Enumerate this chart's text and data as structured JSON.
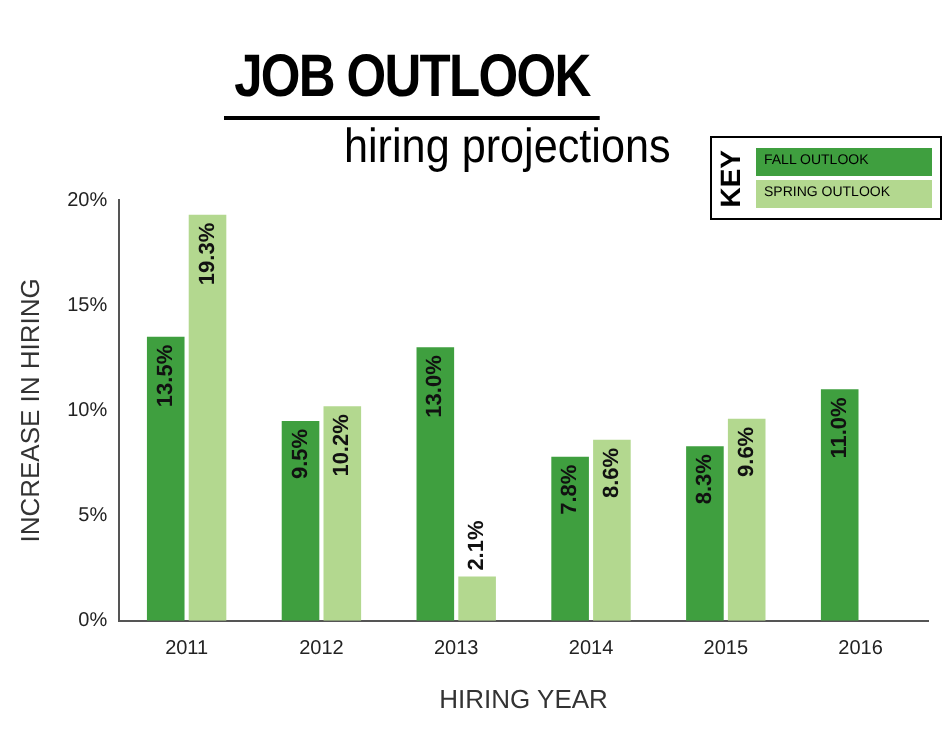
{
  "chart_data": {
    "type": "bar",
    "title": "JOB OUTLOOK",
    "subtitle": "hiring projections",
    "xlabel": "HIRING YEAR",
    "ylabel": "INCREASE IN HIRING",
    "legend_title": "KEY",
    "legend": "top right",
    "grid": false,
    "categories": [
      "2011",
      "2012",
      "2013",
      "2014",
      "2015",
      "2016"
    ],
    "series": [
      {
        "name": "FALL OUTLOOK",
        "color": "#3f9f3f",
        "values": [
          13.5,
          9.5,
          13.0,
          7.8,
          8.3,
          11.0
        ],
        "value_labels": [
          "13.5%",
          "9.5%",
          "13.0%",
          "7.8%",
          "8.3%",
          "11.0%"
        ]
      },
      {
        "name": "SPRING OUTLOOK",
        "color": "#b3d88f",
        "values": [
          19.3,
          10.2,
          2.1,
          8.6,
          9.6,
          null
        ],
        "value_labels": [
          "19.3%",
          "10.2%",
          "2.1%",
          "8.6%",
          "9.6%",
          null
        ]
      }
    ],
    "ylim": [
      0,
      20
    ],
    "yticks": [
      {
        "value": 0,
        "label": "0%"
      },
      {
        "value": 5,
        "label": "5%"
      },
      {
        "value": 10,
        "label": "10%"
      },
      {
        "value": 15,
        "label": "15%"
      },
      {
        "value": 20,
        "label": "20%"
      }
    ]
  }
}
